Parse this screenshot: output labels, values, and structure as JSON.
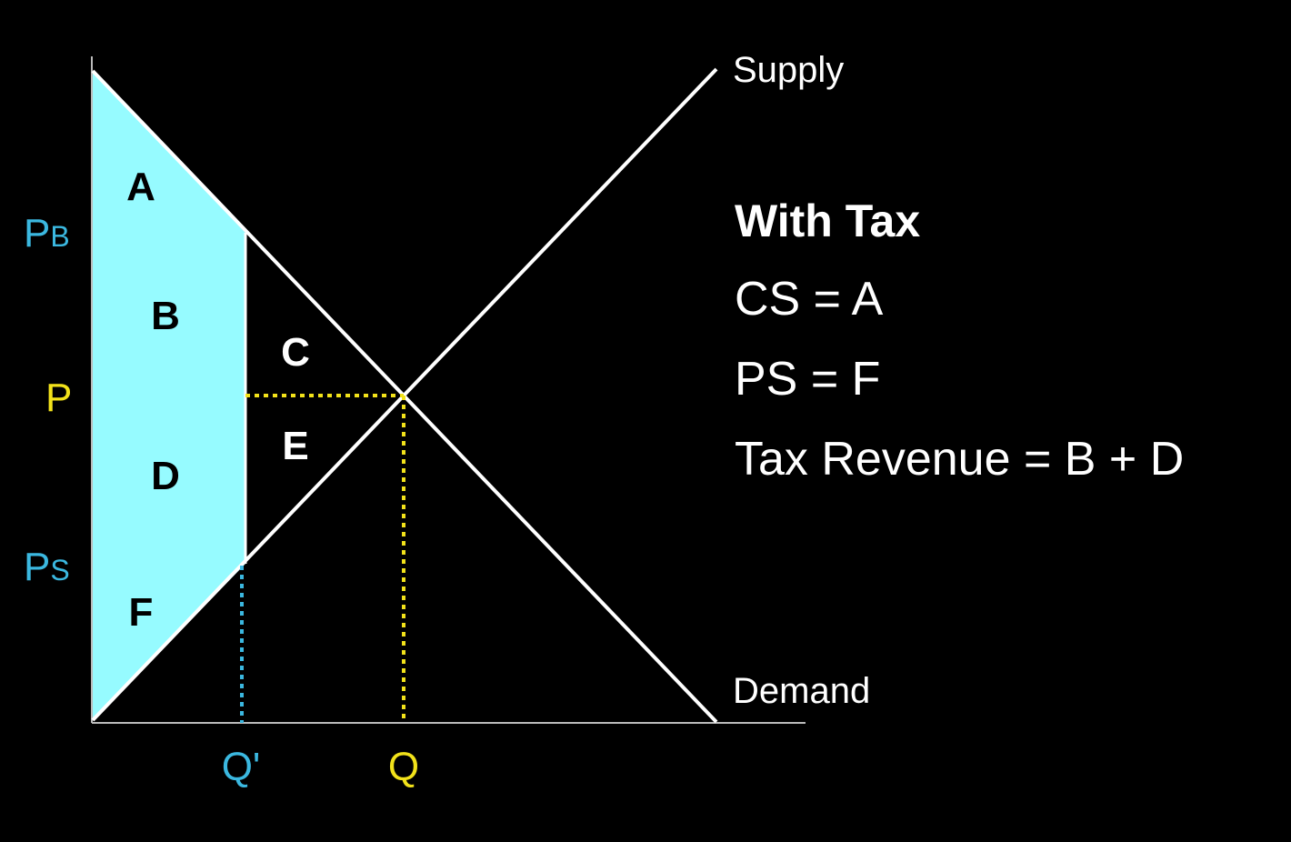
{
  "colors": {
    "background": "#000000",
    "shade": "#96fbff",
    "curve": "#ffffff",
    "axis": "#bbbbbb",
    "tax_price_label": "#3bb8e0",
    "equilibrium": "#f2e21a",
    "text": "#ffffff"
  },
  "curves": {
    "supply_label": "Supply",
    "demand_label": "Demand"
  },
  "price_labels": {
    "buyer_base": "P",
    "buyer_sub": "B",
    "equilibrium": "P",
    "seller_base": "P",
    "seller_sub": "S"
  },
  "quantity_labels": {
    "with_tax": "Q'",
    "equilibrium": "Q"
  },
  "regions": {
    "a": "A",
    "b": "B",
    "c": "C",
    "d": "D",
    "e": "E",
    "f": "F"
  },
  "summary": {
    "title": "With Tax",
    "consumer_surplus": "CS = A",
    "producer_surplus": "PS = F",
    "tax_revenue": "Tax Revenue = B + D"
  }
}
